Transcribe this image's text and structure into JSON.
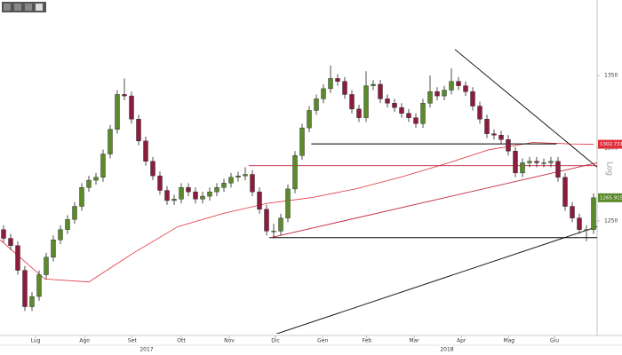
{
  "chart_data": {
    "type": "candlestick",
    "up_color": "#5b8a2a",
    "down_color": "#8a1d3b",
    "log_label": "Log",
    "x": [
      0,
      1,
      2,
      3,
      4,
      5,
      6,
      7,
      8,
      9,
      10,
      11,
      12,
      13,
      14,
      15,
      16,
      17,
      18,
      19,
      20,
      21,
      22,
      23,
      24,
      25,
      26,
      27,
      28,
      29,
      30,
      31,
      32,
      33,
      34,
      35,
      36,
      37,
      38,
      39,
      40,
      41,
      42,
      43,
      44,
      45,
      46,
      47,
      48,
      49,
      50,
      51,
      52,
      53,
      54,
      55,
      56,
      57,
      58,
      59,
      60,
      61,
      62,
      63,
      64,
      65,
      66,
      67,
      68,
      69,
      70,
      71,
      72,
      73,
      74,
      75,
      76,
      77,
      78,
      79,
      80,
      81,
      82,
      83
    ],
    "open": [
      1244,
      1238,
      1233,
      1216,
      1191,
      1198,
      1213,
      1225,
      1237,
      1244,
      1251,
      1260,
      1273,
      1278,
      1280,
      1296,
      1313,
      1337,
      1336,
      1320,
      1305,
      1291,
      1281,
      1271,
      1264,
      1265,
      1273,
      1270,
      1265,
      1267,
      1270,
      1273,
      1276,
      1280,
      1281,
      1282,
      1270,
      1258,
      1243,
      1243,
      1252,
      1272,
      1295,
      1314,
      1326,
      1334,
      1341,
      1348,
      1346,
      1337,
      1327,
      1321,
      1343,
      1344,
      1334,
      1331,
      1328,
      1324,
      1321,
      1317,
      1331,
      1339,
      1336,
      1340,
      1346,
      1343,
      1339,
      1329,
      1320,
      1310,
      1309,
      1306,
      1298,
      1283,
      1290,
      1291,
      1290,
      1290,
      1291,
      1280,
      1260,
      1252,
      1244,
      1244
    ],
    "high": [
      1247,
      1241,
      1236,
      1219,
      1201,
      1216,
      1228,
      1240,
      1247,
      1254,
      1263,
      1276,
      1281,
      1283,
      1299,
      1316,
      1340,
      1348,
      1339,
      1323,
      1308,
      1294,
      1284,
      1274,
      1268,
      1276,
      1276,
      1273,
      1270,
      1273,
      1276,
      1279,
      1283,
      1284,
      1287,
      1285,
      1273,
      1261,
      1248,
      1255,
      1275,
      1298,
      1317,
      1329,
      1337,
      1344,
      1357,
      1351,
      1349,
      1340,
      1330,
      1353,
      1347,
      1347,
      1337,
      1334,
      1331,
      1327,
      1324,
      1334,
      1350,
      1342,
      1343,
      1355,
      1349,
      1346,
      1342,
      1332,
      1323,
      1313,
      1312,
      1309,
      1301,
      1293,
      1294,
      1294,
      1293,
      1294,
      1294,
      1283,
      1263,
      1255,
      1247,
      1269
    ],
    "low": [
      1235,
      1230,
      1213,
      1188,
      1188,
      1195,
      1210,
      1222,
      1234,
      1241,
      1248,
      1257,
      1270,
      1275,
      1277,
      1293,
      1310,
      1333,
      1317,
      1302,
      1288,
      1278,
      1268,
      1261,
      1261,
      1262,
      1267,
      1262,
      1262,
      1264,
      1267,
      1270,
      1273,
      1277,
      1278,
      1267,
      1255,
      1240,
      1238,
      1240,
      1249,
      1269,
      1292,
      1311,
      1323,
      1331,
      1338,
      1343,
      1334,
      1324,
      1318,
      1318,
      1340,
      1331,
      1328,
      1325,
      1321,
      1318,
      1314,
      1314,
      1328,
      1333,
      1333,
      1337,
      1340,
      1336,
      1326,
      1317,
      1307,
      1306,
      1303,
      1295,
      1280,
      1280,
      1287,
      1287,
      1287,
      1287,
      1277,
      1257,
      1249,
      1241,
      1236,
      1241
    ],
    "close": [
      1238,
      1233,
      1216,
      1191,
      1198,
      1213,
      1225,
      1237,
      1244,
      1251,
      1260,
      1273,
      1278,
      1280,
      1296,
      1313,
      1337,
      1336,
      1320,
      1305,
      1291,
      1281,
      1271,
      1264,
      1265,
      1273,
      1270,
      1265,
      1267,
      1270,
      1273,
      1276,
      1280,
      1281,
      1282,
      1270,
      1258,
      1243,
      1243,
      1252,
      1272,
      1295,
      1314,
      1326,
      1334,
      1341,
      1348,
      1346,
      1337,
      1327,
      1321,
      1343,
      1344,
      1334,
      1331,
      1328,
      1324,
      1321,
      1317,
      1331,
      1339,
      1336,
      1340,
      1346,
      1343,
      1339,
      1329,
      1320,
      1310,
      1309,
      1306,
      1298,
      1283,
      1290,
      1291,
      1290,
      1290,
      1291,
      1280,
      1260,
      1252,
      1244,
      1244,
      1265.9199
    ],
    "moving_average": {
      "color": "#e0303a",
      "x": [
        -0.5,
        5.8,
        12,
        18.3,
        24.5,
        30.8,
        37,
        43.3,
        49.5,
        55.8,
        62,
        68.3,
        74.5,
        79.5,
        83
      ],
      "values": [
        1237,
        1210,
        1208,
        1228,
        1246,
        1255,
        1262,
        1266,
        1272,
        1280,
        1289,
        1299,
        1304,
        1303,
        1302.7316
      ]
    },
    "trend_lines": [
      {
        "color": "#000000",
        "x": [
          63.5,
          83.5
        ],
        "values": [
          1368,
          1287
        ]
      },
      {
        "color": "#000000",
        "x": [
          43.3,
          77.8
        ],
        "values": [
          1303,
          1303
        ]
      },
      {
        "color": "#000000",
        "x": [
          37.4,
          83.5
        ],
        "values": [
          1238.5,
          1238.5
        ]
      },
      {
        "color": "#000000",
        "x": [
          37,
          83.5
        ],
        "values": [
          1170,
          1246
        ]
      },
      {
        "color": "#c0243a",
        "x": [
          37.6,
          83.5
        ],
        "values": [
          1238.5,
          1290
        ]
      },
      {
        "color": "#c0243a",
        "x": [
          34.5,
          83.5
        ],
        "values": [
          1288,
          1288
        ]
      }
    ],
    "xlim": [
      -0.5,
      83.5
    ],
    "xticks": [
      {
        "value": 4.5,
        "label": "Lug"
      },
      {
        "value": 11.4,
        "label": "Ago"
      },
      {
        "value": 18.1,
        "label": "Set"
      },
      {
        "value": 25,
        "label": "Ott"
      },
      {
        "value": 31.75,
        "label": "Nov"
      },
      {
        "value": 38.25,
        "label": "Dic"
      },
      {
        "value": 44.9,
        "label": "Gen"
      },
      {
        "value": 51.1,
        "label": "Feb"
      },
      {
        "value": 57.75,
        "label": "Mar"
      },
      {
        "value": 64.4,
        "label": "Apr"
      },
      {
        "value": 71.1,
        "label": "Mag"
      },
      {
        "value": 77.5,
        "label": "Giu"
      }
    ],
    "year_labels": [
      "2017",
      "2018"
    ],
    "ylim": [
      1173,
      1402
    ],
    "yticks": [
      1250,
      1300,
      1350
    ],
    "log_scale": true
  }
}
